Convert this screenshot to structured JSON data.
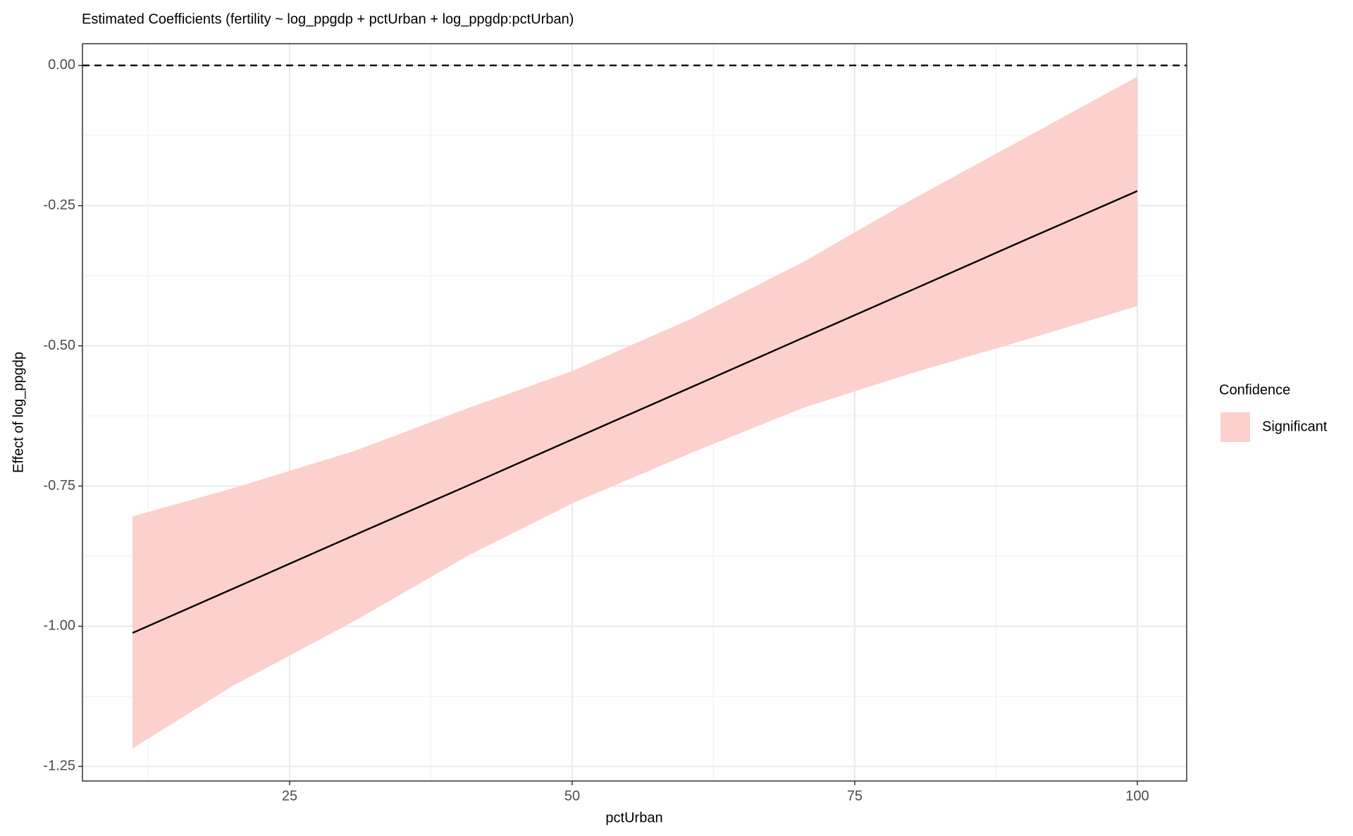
{
  "chart_data": {
    "type": "ribbon-line",
    "title": "Estimated Coefficients (fertility ~ log_ppgdp + pctUrban + log_ppgdp:pctUrban)",
    "x_label": "pctUrban",
    "y_label": "Effect of log_ppgdp",
    "x": [
      11.1,
      20,
      30.8,
      40.8,
      50,
      60.4,
      70.4,
      80,
      90,
      100
    ],
    "series": [
      {
        "name": "Significant",
        "color": "#fcd0cd",
        "lower": [
          -1.218,
          -1.106,
          -0.99,
          -0.874,
          -0.781,
          -0.692,
          -0.611,
          -0.549,
          -0.49,
          -0.429
        ],
        "upper": [
          -0.804,
          -0.754,
          -0.687,
          -0.611,
          -0.545,
          -0.453,
          -0.351,
          -0.24,
          -0.13,
          -0.02
        ],
        "values": [
          -1.012,
          -0.933,
          -0.837,
          -0.749,
          -0.667,
          -0.575,
          -0.486,
          -0.401,
          -0.312,
          -0.224
        ],
        "line_color": "#000000"
      }
    ],
    "hline": 0,
    "legend_title": "Confidence",
    "legend": "right",
    "xlim": [
      6.67,
      104.37
    ],
    "xticks": [
      25,
      50,
      75,
      100
    ],
    "ylim": [
      -1.276,
      0.0387
    ],
    "yticks": [
      {
        "value": -1.25,
        "label": "-1.25"
      },
      {
        "value": -1,
        "label": "-1.00"
      },
      {
        "value": -0.75,
        "label": "-0.75"
      },
      {
        "value": -0.5,
        "label": "-0.50"
      },
      {
        "value": -0.25,
        "label": "-0.25"
      },
      {
        "value": 0,
        "label": "0.00"
      }
    ],
    "grid": true
  }
}
